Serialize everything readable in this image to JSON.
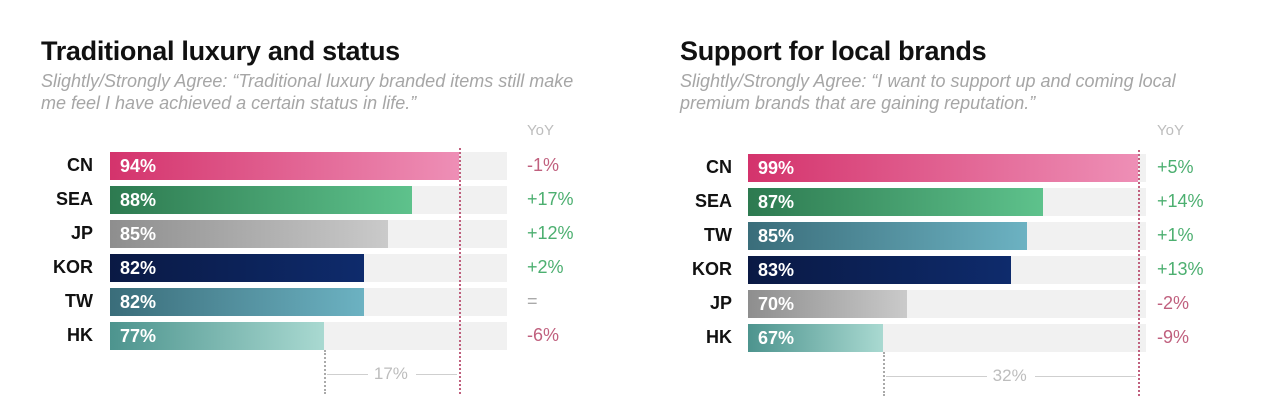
{
  "colors": {
    "positive": "#4caf70",
    "negative": "#c0607e",
    "neutral": "#aaaaaa",
    "reference": "#c0607e",
    "gap": "#bbbbbb"
  },
  "chart_data": [
    {
      "type": "bar",
      "orientation": "horizontal",
      "title": "Traditional luxury and status",
      "subtitle": "Slightly/Strongly Agree: “Traditional luxury branded items still make me feel I have achieved a certain status in life.”",
      "xlim": [
        50,
        100
      ],
      "yoy_label": "YoY",
      "gap_label": "17%",
      "categories": [
        "CN",
        "SEA",
        "JP",
        "KOR",
        "TW",
        "HK"
      ],
      "values": [
        94,
        88,
        85,
        82,
        82,
        77
      ],
      "value_labels": [
        "94%",
        "88%",
        "85%",
        "82%",
        "82%",
        "77%"
      ],
      "yoy": [
        "-1%",
        "+17%",
        "+12%",
        "+2%",
        "=",
        "-6%"
      ],
      "bar_colors": [
        [
          "#d4336c",
          "#ee8fb6"
        ],
        [
          "#2d7a50",
          "#5ec28c"
        ],
        [
          "#8e8e8e",
          "#cacaca"
        ],
        [
          "#0a1944",
          "#0e2b6c"
        ],
        [
          "#3a6d7a",
          "#6cb2c2"
        ],
        [
          "#4d948e",
          "#a9d9d1"
        ]
      ]
    },
    {
      "type": "bar",
      "orientation": "horizontal",
      "title": "Support for local brands",
      "subtitle": "Slightly/Strongly Agree: “I want to support up and coming local premium brands that are gaining reputation.”",
      "xlim": [
        50,
        100
      ],
      "yoy_label": "YoY",
      "gap_label": "32%",
      "categories": [
        "CN",
        "SEA",
        "TW",
        "KOR",
        "JP",
        "HK"
      ],
      "values": [
        99,
        87,
        85,
        83,
        70,
        67
      ],
      "value_labels": [
        "99%",
        "87%",
        "85%",
        "83%",
        "70%",
        "67%"
      ],
      "yoy": [
        "+5%",
        "+14%",
        "+1%",
        "+13%",
        "-2%",
        "-9%"
      ],
      "bar_colors": [
        [
          "#d4336c",
          "#ee8fb6"
        ],
        [
          "#2d7a50",
          "#5ec28c"
        ],
        [
          "#3a6d7a",
          "#6cb2c2"
        ],
        [
          "#0a1944",
          "#0e2b6c"
        ],
        [
          "#8e8e8e",
          "#cacaca"
        ],
        [
          "#4d948e",
          "#a9d9d1"
        ]
      ]
    }
  ]
}
